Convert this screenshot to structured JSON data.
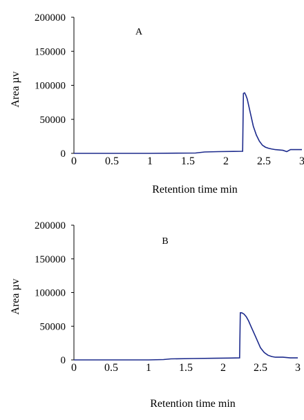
{
  "chart_data": [
    {
      "type": "line",
      "panel_label": "A",
      "xlabel": "Retention time   min",
      "ylabel": "Area   µv",
      "xlim": [
        0,
        3
      ],
      "ylim": [
        0,
        200000
      ],
      "xticks": [
        "0",
        "0.5",
        "1",
        "1.5",
        "2",
        "2.5",
        "3"
      ],
      "yticks": [
        "0",
        "50000",
        "100000",
        "150000",
        "200000"
      ],
      "grid": false,
      "series": [
        {
          "color": "#1c2a8c",
          "x": [
            0,
            1.0,
            1.6,
            1.72,
            1.9,
            2.1,
            2.22,
            2.23,
            2.245,
            2.26,
            2.28,
            2.3,
            2.33,
            2.36,
            2.4,
            2.44,
            2.48,
            2.52,
            2.56,
            2.6,
            2.65,
            2.7,
            2.75,
            2.8,
            2.85,
            2.9,
            3.0
          ],
          "y": [
            0,
            0,
            500,
            2000,
            2500,
            2800,
            3000,
            88000,
            89000,
            86000,
            80000,
            70000,
            55000,
            40000,
            27000,
            18000,
            12000,
            9000,
            7500,
            6500,
            5500,
            5000,
            4500,
            2500,
            5500,
            5500,
            5500
          ]
        }
      ]
    },
    {
      "type": "line",
      "panel_label": "B",
      "xlabel": "Retention time   min",
      "ylabel": "Area   µv",
      "xlim": [
        0,
        3
      ],
      "ylim": [
        0,
        200000
      ],
      "xticks": [
        "0",
        "0.5",
        "1",
        "1.5",
        "2",
        "2.5",
        "3"
      ],
      "yticks": [
        "0",
        "50000",
        "100000",
        "150000",
        "200000"
      ],
      "grid": false,
      "series": [
        {
          "color": "#1c2a8c",
          "x": [
            0,
            1.0,
            1.2,
            1.3,
            1.6,
            1.9,
            2.1,
            2.22,
            2.23,
            2.25,
            2.28,
            2.31,
            2.34,
            2.38,
            2.42,
            2.46,
            2.5,
            2.55,
            2.6,
            2.65,
            2.7,
            2.8,
            2.9,
            3.0
          ],
          "y": [
            0,
            0,
            500,
            1500,
            2000,
            2500,
            2800,
            3000,
            70000,
            70000,
            68000,
            64000,
            58000,
            48000,
            38000,
            28000,
            18000,
            11000,
            7000,
            5000,
            4000,
            4000,
            3000,
            3000
          ]
        }
      ]
    }
  ]
}
